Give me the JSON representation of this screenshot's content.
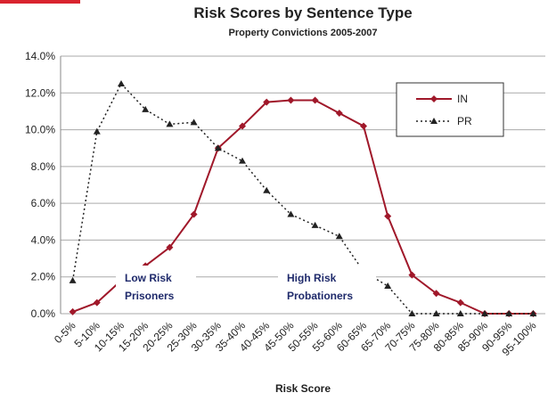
{
  "chart_data": {
    "type": "line",
    "title": "Risk Scores by Sentence Type",
    "subtitle": "Property Convictions 2005-2007",
    "x_label": "Risk Score",
    "categories": [
      "0-5%",
      "5-10%",
      "10-15%",
      "15-20%",
      "20-25%",
      "25-30%",
      "30-35%",
      "35-40%",
      "40-45%",
      "45-50%",
      "50-55%",
      "55-60%",
      "60-65%",
      "65-70%",
      "70-75%",
      "75-80%",
      "80-85%",
      "85-90%",
      "90-95%",
      "95-100%"
    ],
    "series": [
      {
        "name": "IN",
        "color": "#a0182a",
        "marker": "diamond",
        "dash": false,
        "values": [
          0.1,
          0.6,
          1.8,
          2.6,
          3.6,
          5.4,
          9.0,
          10.2,
          11.5,
          11.6,
          11.6,
          10.9,
          10.2,
          5.3,
          2.1,
          1.1,
          0.6,
          0,
          0,
          0
        ]
      },
      {
        "name": "PR",
        "color": "#222222",
        "marker": "triangle",
        "dash": true,
        "values": [
          1.8,
          9.9,
          12.5,
          11.1,
          10.3,
          10.4,
          9.0,
          8.3,
          6.7,
          5.4,
          4.8,
          4.2,
          2.3,
          1.5,
          0,
          0,
          0,
          0,
          0,
          0
        ]
      }
    ],
    "ylim": [
      0,
      14
    ],
    "yticks": [
      {
        "value": 0,
        "label": "0.0%"
      },
      {
        "value": 2,
        "label": "2.0%"
      },
      {
        "value": 4,
        "label": "4.0%"
      },
      {
        "value": 6,
        "label": "6.0%"
      },
      {
        "value": 8,
        "label": "8.0%"
      },
      {
        "value": 10,
        "label": "10.0%"
      },
      {
        "value": 12,
        "label": "12.0%"
      },
      {
        "value": 14,
        "label": "14.0%"
      }
    ],
    "grid": true,
    "legend": "top-right",
    "annotations": [
      {
        "lines": [
          "Low Risk",
          "Prisoners"
        ]
      },
      {
        "lines": [
          "High Risk",
          "Probationers"
        ]
      }
    ]
  }
}
